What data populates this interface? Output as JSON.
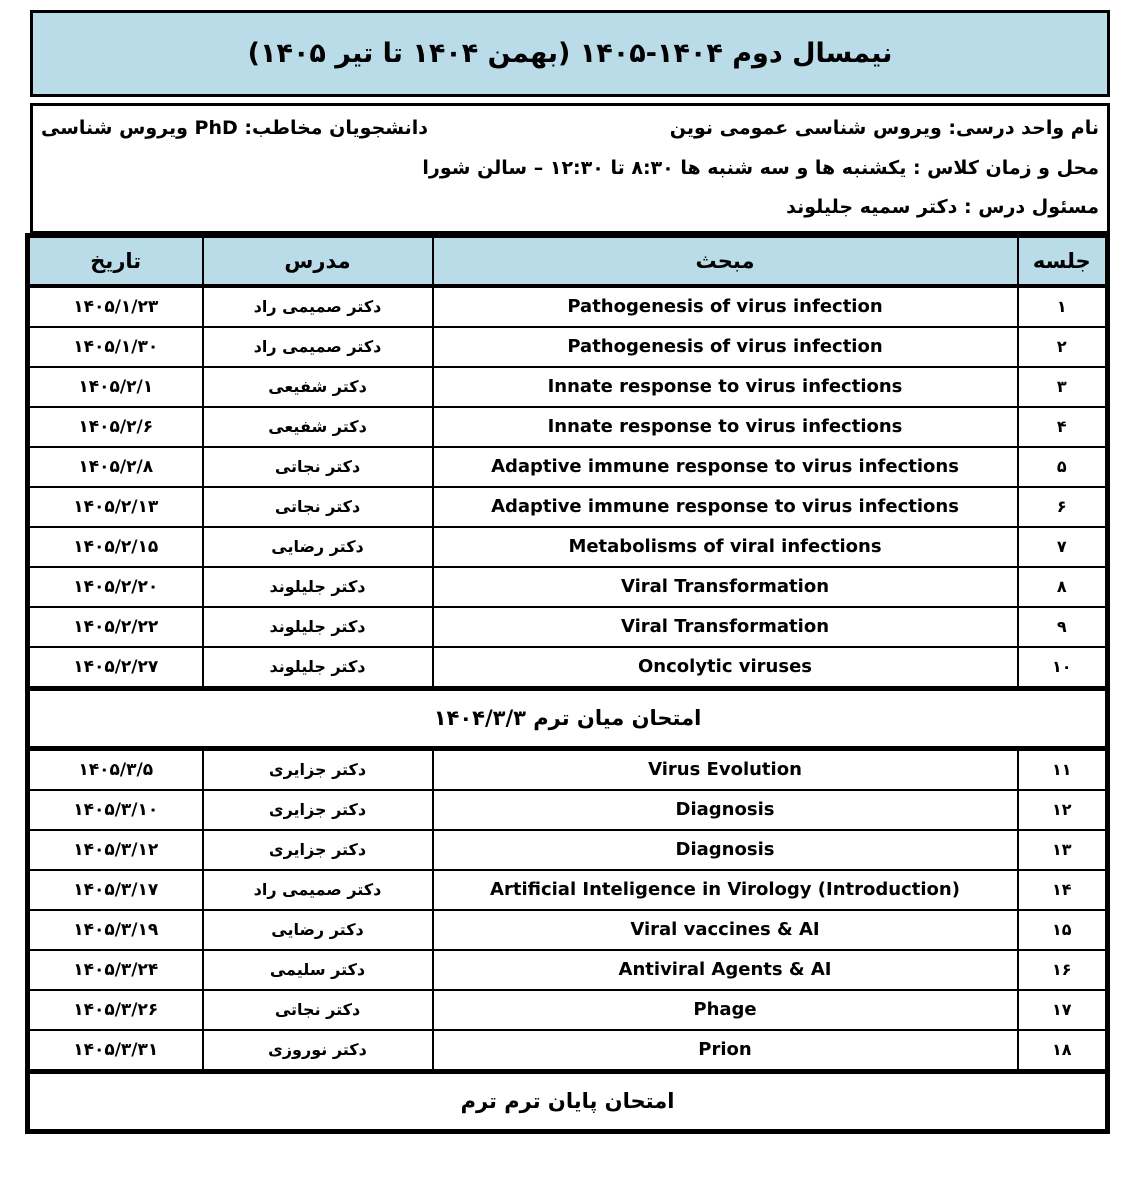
{
  "colors": {
    "band_bg": "#b9dce8",
    "border": "#000000",
    "text": "#000000",
    "page_bg": "#ffffff"
  },
  "title": "نیمسال دوم  ۱۴۰۴-۱۴۰۵ (بهمن ۱۴۰۴ تا تیر ۱۴۰۵)",
  "info": {
    "course_name": "نام واحد درسی: ویروس شناسی عمومی نوین",
    "audience": "دانشجویان مخاطب: PhD ویروس شناسی",
    "time_place": "محل و زمان کلاس :  یکشنبه ها و سه شنبه ها  ۸:۳۰ تا ۱۲:۳۰  – سالن شورا",
    "coordinator": "مسئول درس : دکتر سمیه جلیلوند"
  },
  "table": {
    "headers": {
      "session": "جلسه",
      "topic": "مبحث",
      "instructor": "مدرس",
      "date": "تاریخ"
    },
    "midterm_label": "امتحان میان ترم  ۱۴۰۴/۳/۳",
    "final_label": "امتحان پایان ترم ترم",
    "rows": [
      {
        "session": "۱",
        "topic": "Pathogenesis of virus infection",
        "instructor": "دکتر صمیمی راد",
        "date": "۱۴۰۵/۱/۲۳"
      },
      {
        "session": "۲",
        "topic": "Pathogenesis of virus infection",
        "instructor": "دکتر صمیمی راد",
        "date": "۱۴۰۵/۱/۳۰"
      },
      {
        "session": "۳",
        "topic": "Innate response to virus infections",
        "instructor": "دکتر شفیعی",
        "date": "۱۴۰۵/۲/۱"
      },
      {
        "session": "۴",
        "topic": "Innate response to virus infections",
        "instructor": "دکتر شفیعی",
        "date": "۱۴۰۵/۲/۶"
      },
      {
        "session": "۵",
        "topic": "Adaptive immune response to virus infections",
        "instructor": "دکتر نجاتی",
        "date": "۱۴۰۵/۲/۸"
      },
      {
        "session": "۶",
        "topic": "Adaptive immune response to virus infections",
        "instructor": "دکتر نجاتی",
        "date": "۱۴۰۵/۲/۱۳"
      },
      {
        "session": "۷",
        "topic": "Metabolisms of viral infections",
        "instructor": "دکتر رضایی",
        "date": "۱۴۰۵/۲/۱۵"
      },
      {
        "session": "۸",
        "topic": "Viral Transformation",
        "instructor": "دکتر جلیلوند",
        "date": "۱۴۰۵/۲/۲۰"
      },
      {
        "session": "۹",
        "topic": "Viral Transformation",
        "instructor": "دکتر جلیلوند",
        "date": "۱۴۰۵/۲/۲۲"
      },
      {
        "session": "۱۰",
        "topic": "Oncolytic viruses",
        "instructor": "دکتر جلیلوند",
        "date": "۱۴۰۵/۲/۲۷"
      },
      {
        "session": "۱۱",
        "topic": "Virus Evolution",
        "instructor": "دکتر جزایری",
        "date": "۱۴۰۵/۳/۵"
      },
      {
        "session": "۱۲",
        "topic": "Diagnosis",
        "instructor": "دکتر جزایری",
        "date": "۱۴۰۵/۳/۱۰"
      },
      {
        "session": "۱۳",
        "topic": "Diagnosis",
        "instructor": "دکتر جزایری",
        "date": "۱۴۰۵/۳/۱۲"
      },
      {
        "session": "۱۴",
        "topic": "Artificial Inteligence in Virology (Introduction)",
        "instructor": "دکتر صمیمی راد",
        "date": "۱۴۰۵/۳/۱۷"
      },
      {
        "session": "۱۵",
        "topic": "Viral vaccines & AI",
        "instructor": "دکتر رضایی",
        "date": "۱۴۰۵/۳/۱۹"
      },
      {
        "session": "۱۶",
        "topic": "Antiviral Agents & AI",
        "instructor": "دکتر سلیمی",
        "date": "۱۴۰۵/۳/۲۴"
      },
      {
        "session": "۱۷",
        "topic": "Phage",
        "instructor": "دکتر نجاتی",
        "date": "۱۴۰۵/۳/۲۶"
      },
      {
        "session": "۱۸",
        "topic": "Prion",
        "instructor": "دکتر نوروزی",
        "date": "۱۴۰۵/۳/۳۱"
      }
    ]
  }
}
